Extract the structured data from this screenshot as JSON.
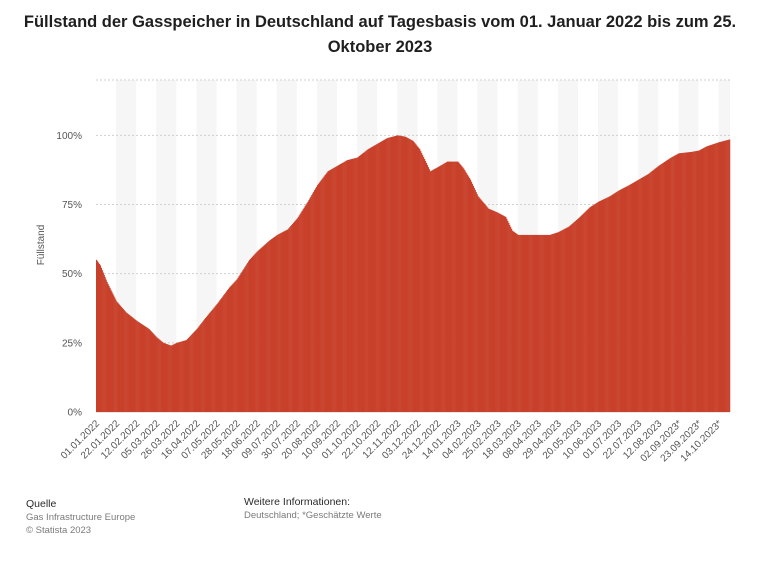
{
  "title": "Füllstand der Gasspeicher in Deutschland auf Tagesbasis vom 01. Januar 2022 bis zum 25. Oktober 2023",
  "footer": {
    "source_heading": "Quelle",
    "source": "Gas Infrastructure Europe",
    "copyright": "© Statista 2023",
    "info_heading": "Weitere Informationen:",
    "info": "Deutschland; *Geschätzte Werte"
  },
  "colors": {
    "bar": "#c8412b",
    "band": "#f6f6f6",
    "grid": "#cfcfcf"
  },
  "chart_data": {
    "type": "area",
    "ylabel": "Füllstand",
    "xlabel": "",
    "ylim": [
      0,
      120
    ],
    "yticks": [
      0,
      25,
      50,
      75,
      100
    ],
    "ytick_labels": [
      "0%",
      "25%",
      "50%",
      "75%",
      "100%"
    ],
    "x_start": "2022-01-01",
    "x_end": "2023-10-25",
    "grid": true,
    "xtick_labels": [
      "01.01.2022",
      "22.01.2022",
      "12.02.2022",
      "05.03.2022",
      "26.03.2022",
      "16.04.2022",
      "07.05.2022",
      "28.05.2022",
      "18.06.2022",
      "09.07.2022",
      "30.07.2022",
      "20.08.2022",
      "10.09.2022",
      "01.10.2022",
      "22.10.2022",
      "12.11.2022",
      "03.12.2022",
      "24.12.2022",
      "14.01.2023",
      "04.02.2023",
      "25.02.2023",
      "18.03.2023",
      "08.04.2023",
      "29.04.2023",
      "20.05.2023",
      "10.06.2023",
      "01.07.2023",
      "22.07.2023",
      "12.08.2023",
      "02.09.2023*",
      "23.09.2023*",
      "14.10.2023*"
    ],
    "points": [
      [
        "2022-01-01",
        55
      ],
      [
        "2022-01-05",
        53
      ],
      [
        "2022-01-12",
        47
      ],
      [
        "2022-01-22",
        40
      ],
      [
        "2022-02-01",
        36
      ],
      [
        "2022-02-12",
        33
      ],
      [
        "2022-02-25",
        30
      ],
      [
        "2022-03-05",
        27
      ],
      [
        "2022-03-12",
        25
      ],
      [
        "2022-03-20",
        24
      ],
      [
        "2022-03-26",
        25
      ],
      [
        "2022-04-05",
        26
      ],
      [
        "2022-04-16",
        30
      ],
      [
        "2022-04-25",
        34
      ],
      [
        "2022-05-07",
        39
      ],
      [
        "2022-05-20",
        45
      ],
      [
        "2022-05-28",
        48
      ],
      [
        "2022-06-10",
        55
      ],
      [
        "2022-06-18",
        58
      ],
      [
        "2022-07-01",
        62
      ],
      [
        "2022-07-09",
        64
      ],
      [
        "2022-07-20",
        66
      ],
      [
        "2022-07-30",
        70
      ],
      [
        "2022-08-10",
        76
      ],
      [
        "2022-08-20",
        82
      ],
      [
        "2022-08-31",
        87
      ],
      [
        "2022-09-10",
        89
      ],
      [
        "2022-09-20",
        91
      ],
      [
        "2022-10-01",
        92
      ],
      [
        "2022-10-12",
        95
      ],
      [
        "2022-10-22",
        97
      ],
      [
        "2022-11-01",
        99
      ],
      [
        "2022-11-12",
        100
      ],
      [
        "2022-11-20",
        99.5
      ],
      [
        "2022-11-28",
        98
      ],
      [
        "2022-12-05",
        95
      ],
      [
        "2022-12-12",
        90
      ],
      [
        "2022-12-16",
        87
      ],
      [
        "2022-12-24",
        88.5
      ],
      [
        "2023-01-03",
        90.5
      ],
      [
        "2023-01-14",
        90.5
      ],
      [
        "2023-01-20",
        88
      ],
      [
        "2023-01-27",
        84
      ],
      [
        "2023-02-04",
        78
      ],
      [
        "2023-02-15",
        73.5
      ],
      [
        "2023-02-25",
        72
      ],
      [
        "2023-03-05",
        70.5
      ],
      [
        "2023-03-12",
        65.5
      ],
      [
        "2023-03-18",
        64
      ],
      [
        "2023-04-08",
        64
      ],
      [
        "2023-04-20",
        64
      ],
      [
        "2023-04-29",
        65
      ],
      [
        "2023-05-10",
        67
      ],
      [
        "2023-05-20",
        70
      ],
      [
        "2023-06-01",
        74
      ],
      [
        "2023-06-10",
        76
      ],
      [
        "2023-06-22",
        78
      ],
      [
        "2023-07-01",
        80
      ],
      [
        "2023-07-12",
        82
      ],
      [
        "2023-07-22",
        84
      ],
      [
        "2023-08-01",
        86
      ],
      [
        "2023-08-12",
        89
      ],
      [
        "2023-08-25",
        92
      ],
      [
        "2023-09-02",
        93.5
      ],
      [
        "2023-09-15",
        94
      ],
      [
        "2023-09-23",
        94.5
      ],
      [
        "2023-10-01",
        96
      ],
      [
        "2023-10-14",
        97.5
      ],
      [
        "2023-10-25",
        98.5
      ]
    ]
  }
}
